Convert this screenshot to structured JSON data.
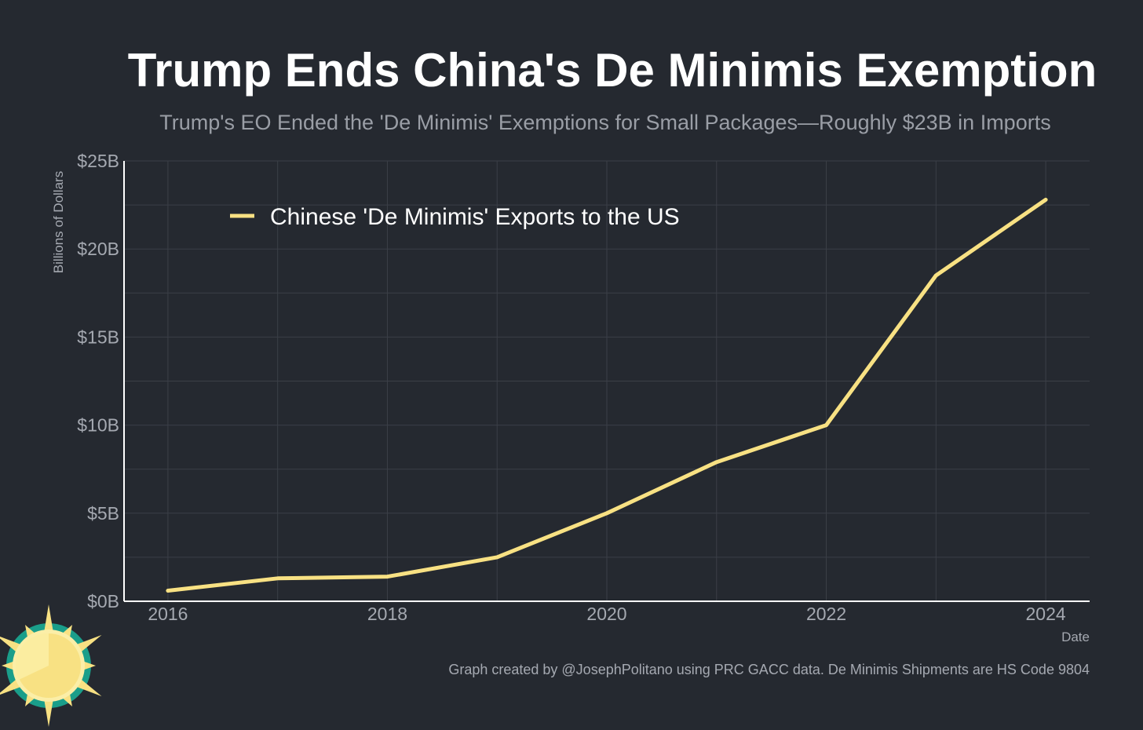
{
  "chart_data": {
    "type": "line",
    "title": "Trump Ends China's De Minimis Exemption",
    "subtitle": "Trump's EO Ended the 'De Minimis' Exemptions for Small Packages—Roughly $23B in Imports",
    "xlabel": "Date",
    "ylabel": "Billions of Dollars",
    "x": [
      2016,
      2017,
      2018,
      2019,
      2020,
      2021,
      2022,
      2023,
      2024
    ],
    "series": [
      {
        "name": "Chinese 'De Minimis' Exports to the US",
        "values": [
          0.6,
          1.3,
          1.4,
          2.5,
          5.0,
          7.9,
          10.0,
          18.5,
          22.8
        ],
        "color": "#f8e183"
      }
    ],
    "xlim": [
      2015.6,
      2024.4
    ],
    "ylim": [
      0,
      25
    ],
    "x_ticks": [
      {
        "value": 2016,
        "label": "2016"
      },
      {
        "value": 2018,
        "label": "2018"
      },
      {
        "value": 2020,
        "label": "2020"
      },
      {
        "value": 2022,
        "label": "2022"
      },
      {
        "value": 2024,
        "label": "2024"
      }
    ],
    "y_ticks": [
      {
        "value": 0,
        "label": "$0B"
      },
      {
        "value": 5,
        "label": "$5B"
      },
      {
        "value": 10,
        "label": "$10B"
      },
      {
        "value": 15,
        "label": "$15B"
      },
      {
        "value": 20,
        "label": "$20B"
      },
      {
        "value": 25,
        "label": "$25B"
      }
    ],
    "grid": true,
    "legend_position": "top-left",
    "caption": "Graph created by @JosephPolitano using PRC GACC data. De Minimis Shipments are HS Code 9804",
    "colors": {
      "background": "#252930",
      "grid": "#3b3f47",
      "axis": "#ffffff",
      "text_muted": "#a5a9b1",
      "logo_sun": "#f8e183",
      "logo_ring": "#1a9e8a"
    }
  },
  "branding": {
    "logo_icon": "sun-logo-icon"
  }
}
